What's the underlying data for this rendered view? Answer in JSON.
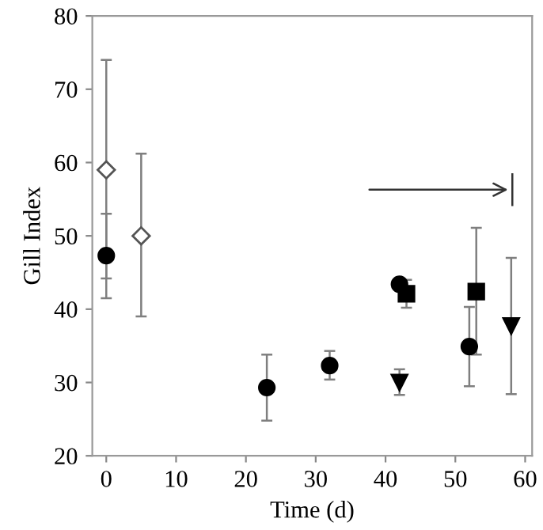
{
  "chart_data": {
    "type": "scatter",
    "xlabel": "Time (d)",
    "ylabel": "Gill Index",
    "xlim": [
      -2,
      61
    ],
    "xticks": [
      0,
      10,
      20,
      30,
      40,
      50,
      60
    ],
    "ylim": [
      20,
      80
    ],
    "yticks": [
      20,
      30,
      40,
      50,
      60,
      70,
      80
    ],
    "grid": false,
    "legend": false,
    "series": [
      {
        "marker": "diamond",
        "color": "#ffffff",
        "x": [
          0,
          5
        ],
        "values": [
          59,
          50
        ],
        "errors": [
          [
            44.2,
            74
          ],
          [
            39,
            61.2
          ]
        ]
      },
      {
        "marker": "circle",
        "color": "#000000",
        "x": [
          0,
          23,
          32,
          42,
          52
        ],
        "values": [
          47.3,
          29.3,
          32.3,
          43.4,
          34.9
        ],
        "errors": [
          [
            41.5,
            53
          ],
          [
            24.8,
            33.8
          ],
          [
            30.4,
            34.3
          ],
          [
            42.7,
            44
          ],
          [
            29.5,
            40.3
          ]
        ]
      },
      {
        "marker": "square",
        "color": "#000000",
        "x": [
          43,
          53
        ],
        "values": [
          42.1,
          42.4
        ],
        "errors": [
          [
            40.2,
            44
          ],
          [
            33.8,
            51.1
          ]
        ]
      },
      {
        "marker": "triangle",
        "color": "#000000",
        "x": [
          42,
          58
        ],
        "values": [
          30,
          37.7
        ],
        "errors": [
          [
            28.3,
            31.8
          ],
          [
            28.4,
            47
          ]
        ]
      }
    ]
  }
}
